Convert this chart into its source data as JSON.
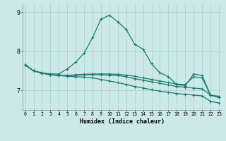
{
  "xlabel": "Humidex (Indice chaleur)",
  "background_color": "#cce8e8",
  "grid_color": "#aad4d4",
  "line_color": "#1a7a6e",
  "x_labels": [
    "0",
    "1",
    "2",
    "3",
    "4",
    "5",
    "6",
    "7",
    "8",
    "9",
    "10",
    "11",
    "12",
    "13",
    "14",
    "15",
    "16",
    "17",
    "18",
    "19",
    "20",
    "21",
    "22",
    "23"
  ],
  "lines": [
    [
      7.65,
      7.5,
      7.45,
      7.42,
      7.42,
      7.55,
      7.72,
      7.95,
      8.35,
      8.82,
      8.92,
      8.75,
      8.55,
      8.18,
      8.05,
      7.68,
      7.45,
      7.35,
      7.15,
      7.12,
      7.42,
      7.38,
      6.88,
      6.82
    ],
    [
      7.65,
      7.5,
      7.44,
      7.4,
      7.38,
      7.38,
      7.4,
      7.41,
      7.42,
      7.42,
      7.42,
      7.41,
      7.39,
      7.36,
      7.32,
      7.28,
      7.24,
      7.2,
      7.16,
      7.15,
      7.35,
      7.32,
      6.88,
      6.85
    ],
    [
      7.65,
      7.5,
      7.44,
      7.4,
      7.38,
      7.38,
      7.39,
      7.4,
      7.4,
      7.4,
      7.39,
      7.38,
      7.35,
      7.3,
      7.26,
      7.22,
      7.18,
      7.14,
      7.1,
      7.08,
      7.06,
      7.04,
      6.88,
      6.82
    ],
    [
      7.65,
      7.5,
      7.44,
      7.4,
      7.38,
      7.36,
      7.35,
      7.34,
      7.32,
      7.28,
      7.24,
      7.2,
      7.15,
      7.1,
      7.06,
      7.02,
      6.98,
      6.95,
      6.92,
      6.9,
      6.88,
      6.86,
      6.72,
      6.68
    ]
  ],
  "ylim": [
    6.5,
    9.2
  ],
  "yticks": [
    7.0,
    8.0,
    9.0
  ],
  "ytick_labels": [
    "7",
    "8",
    "9"
  ]
}
